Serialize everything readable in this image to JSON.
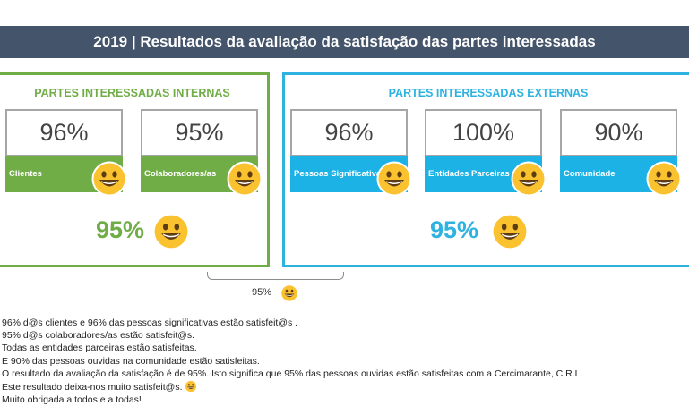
{
  "header": {
    "title": "2019 | Resultados da avaliação da satisfação das partes interessadas"
  },
  "internal": {
    "title": "PARTES INTERESSADAS INTERNAS",
    "color": "#70ad47",
    "cards": [
      {
        "value": "96%",
        "label": "Clientes"
      },
      {
        "value": "95%",
        "label": "Colaboradores/as"
      }
    ],
    "total": "95%"
  },
  "external": {
    "title": "PARTES INTERESSADAS EXTERNAS",
    "color": "#2eb3e0",
    "cards": [
      {
        "value": "96%",
        "label": "Pessoas Significativas"
      },
      {
        "value": "100%",
        "label": "Entidades Parceiras"
      },
      {
        "value": "90%",
        "label": "Comunidade"
      }
    ],
    "total": "95%"
  },
  "overall": {
    "value": "95%"
  },
  "summary": [
    "96% d@s clientes e 96% das pessoas significativas estão satisfeit@s .",
    "95% d@s colaboradores/as estão satisfeit@s.",
    "Todas as entidades parceiras estão satisfeitas.",
    "E 90% das pessoas ouvidas na comunidade estão satisfeitas.",
    "O resultado da avaliação da satisfação é de 95%. Isto significa que 95% das pessoas ouvidas estão satisfeitas com a Cercimarante, C.R.L.",
    "Este resultado deixa-nos muito satisfeit@s.",
    "Muito obrigada a todos e a todas!"
  ],
  "icons": {
    "smiley": "smiley-face-icon"
  }
}
